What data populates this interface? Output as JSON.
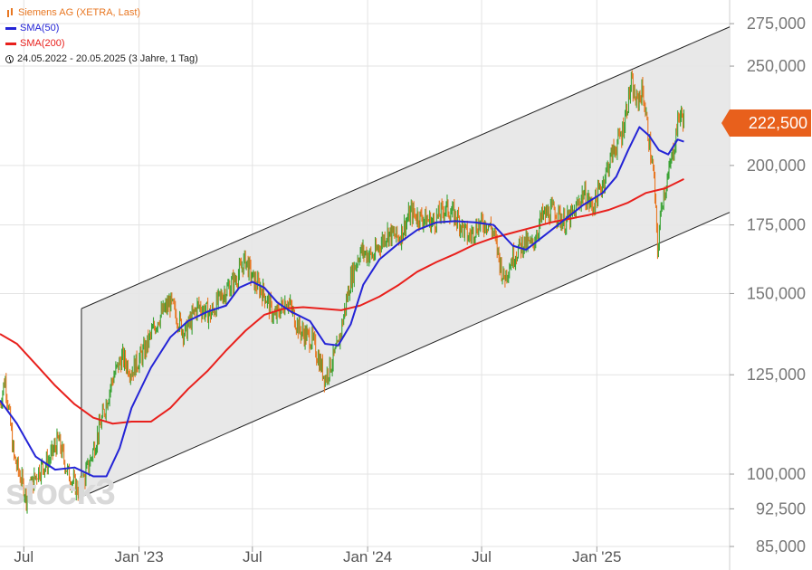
{
  "legend": {
    "instrument": "Siemens AG (XETRA, Last)",
    "sma50": "SMA(50)",
    "sma200": "SMA(200)",
    "period": "24.05.2022 - 20.05.2025  (3 Jahre, 1 Tag)",
    "icons": [
      "candlestick-icon",
      "line-icon",
      "line-icon",
      "clock-icon"
    ]
  },
  "price_badge": "222,500",
  "watermark": "stock3",
  "colors": {
    "up": "#3aa335",
    "down": "#e87722",
    "sma50": "#2424d6",
    "sma200": "#e8201c",
    "channel_fill": "#e6e6e6",
    "badge": "#e8601c"
  },
  "chart_data": {
    "type": "candlestick",
    "title": "Siemens AG (XETRA, Last)",
    "scale": "log",
    "ylim": [
      85000,
      290000
    ],
    "y_ticks": [
      {
        "value": 275000,
        "label": "275,000"
      },
      {
        "value": 250000,
        "label": "250,000"
      },
      {
        "value": 200000,
        "label": "200,000"
      },
      {
        "value": 175000,
        "label": "175,000"
      },
      {
        "value": 150000,
        "label": "150,000"
      },
      {
        "value": 125000,
        "label": "125,000"
      },
      {
        "value": 100000,
        "label": "100,000"
      },
      {
        "value": 92500,
        "label": "92,500"
      },
      {
        "value": 85000,
        "label": "85,000"
      }
    ],
    "x_range": [
      "2022-05-24",
      "2025-08-01"
    ],
    "x_ticks": [
      {
        "date": "2022-07-01",
        "label": "Jul"
      },
      {
        "date": "2023-01-01",
        "label": "Jan '23"
      },
      {
        "date": "2023-07-01",
        "label": "Jul"
      },
      {
        "date": "2024-01-01",
        "label": "Jan '24"
      },
      {
        "date": "2024-07-01",
        "label": "Jul"
      },
      {
        "date": "2025-01-01",
        "label": "Jan '25"
      }
    ],
    "price_path": [
      [
        "2022-05-24",
        117000
      ],
      [
        "2022-06-01",
        124000
      ],
      [
        "2022-06-15",
        104000
      ],
      [
        "2022-07-05",
        95000
      ],
      [
        "2022-07-25",
        101000
      ],
      [
        "2022-08-10",
        103000
      ],
      [
        "2022-08-25",
        108000
      ],
      [
        "2022-09-10",
        100000
      ],
      [
        "2022-09-28",
        96000
      ],
      [
        "2022-10-15",
        103000
      ],
      [
        "2022-11-01",
        112000
      ],
      [
        "2022-11-20",
        124000
      ],
      [
        "2022-12-05",
        130000
      ],
      [
        "2022-12-20",
        126000
      ],
      [
        "2023-01-10",
        132000
      ],
      [
        "2023-02-01",
        142000
      ],
      [
        "2023-02-20",
        147000
      ],
      [
        "2023-03-15",
        137000
      ],
      [
        "2023-04-05",
        146000
      ],
      [
        "2023-04-25",
        143000
      ],
      [
        "2023-05-15",
        150000
      ],
      [
        "2023-06-05",
        155000
      ],
      [
        "2023-06-20",
        162000
      ],
      [
        "2023-07-01",
        155000
      ],
      [
        "2023-07-20",
        150000
      ],
      [
        "2023-08-05",
        142000
      ],
      [
        "2023-08-25",
        148000
      ],
      [
        "2023-09-15",
        138000
      ],
      [
        "2023-10-05",
        135000
      ],
      [
        "2023-10-25",
        124000
      ],
      [
        "2023-11-15",
        133000
      ],
      [
        "2023-12-05",
        155000
      ],
      [
        "2023-12-20",
        165000
      ],
      [
        "2024-01-10",
        163000
      ],
      [
        "2024-02-01",
        172000
      ],
      [
        "2024-02-20",
        170000
      ],
      [
        "2024-03-10",
        180000
      ],
      [
        "2024-03-25",
        178000
      ],
      [
        "2024-04-15",
        176000
      ],
      [
        "2024-05-05",
        182000
      ],
      [
        "2024-05-25",
        177000
      ],
      [
        "2024-06-10",
        170000
      ],
      [
        "2024-06-25",
        175000
      ],
      [
        "2024-07-10",
        176000
      ],
      [
        "2024-07-20",
        172000
      ],
      [
        "2024-08-05",
        155000
      ],
      [
        "2024-08-20",
        163000
      ],
      [
        "2024-09-05",
        168000
      ],
      [
        "2024-09-20",
        167000
      ],
      [
        "2024-10-05",
        178000
      ],
      [
        "2024-10-25",
        181000
      ],
      [
        "2024-11-10",
        176000
      ],
      [
        "2024-11-25",
        179000
      ],
      [
        "2024-12-10",
        188000
      ],
      [
        "2024-12-25",
        182000
      ],
      [
        "2025-01-10",
        192000
      ],
      [
        "2025-01-25",
        205000
      ],
      [
        "2025-02-10",
        215000
      ],
      [
        "2025-02-25",
        240000
      ],
      [
        "2025-03-05",
        230000
      ],
      [
        "2025-03-15",
        237000
      ],
      [
        "2025-03-25",
        212000
      ],
      [
        "2025-04-02",
        195000
      ],
      [
        "2025-04-08",
        165000
      ],
      [
        "2025-04-15",
        185000
      ],
      [
        "2025-04-25",
        195000
      ],
      [
        "2025-05-05",
        210000
      ],
      [
        "2025-05-12",
        224000
      ],
      [
        "2025-05-20",
        222500
      ]
    ],
    "sma50": [
      [
        "2022-05-24",
        118000
      ],
      [
        "2022-06-20",
        112000
      ],
      [
        "2022-07-20",
        104000
      ],
      [
        "2022-08-20",
        101000
      ],
      [
        "2022-09-20",
        101500
      ],
      [
        "2022-10-20",
        99500
      ],
      [
        "2022-11-10",
        99500
      ],
      [
        "2022-12-01",
        106000
      ],
      [
        "2022-12-20",
        116000
      ],
      [
        "2023-01-20",
        127000
      ],
      [
        "2023-02-20",
        136000
      ],
      [
        "2023-03-20",
        141000
      ],
      [
        "2023-04-20",
        144000
      ],
      [
        "2023-05-20",
        146000
      ],
      [
        "2023-06-10",
        152000
      ],
      [
        "2023-07-01",
        154000
      ],
      [
        "2023-07-20",
        152000
      ],
      [
        "2023-08-10",
        147000
      ],
      [
        "2023-09-01",
        144000
      ],
      [
        "2023-10-01",
        141000
      ],
      [
        "2023-10-25",
        134000
      ],
      [
        "2023-11-15",
        133500
      ],
      [
        "2023-12-05",
        140000
      ],
      [
        "2023-12-25",
        153000
      ],
      [
        "2024-01-20",
        162000
      ],
      [
        "2024-02-20",
        168000
      ],
      [
        "2024-03-20",
        173000
      ],
      [
        "2024-04-20",
        176000
      ],
      [
        "2024-05-20",
        176500
      ],
      [
        "2024-06-20",
        176000
      ],
      [
        "2024-07-20",
        175000
      ],
      [
        "2024-08-20",
        167000
      ],
      [
        "2024-09-10",
        165500
      ],
      [
        "2024-10-10",
        171000
      ],
      [
        "2024-11-10",
        177000
      ],
      [
        "2024-12-10",
        183000
      ],
      [
        "2025-01-10",
        188000
      ],
      [
        "2025-02-01",
        195000
      ],
      [
        "2025-02-20",
        207000
      ],
      [
        "2025-03-10",
        218000
      ],
      [
        "2025-03-25",
        214000
      ],
      [
        "2025-04-10",
        207000
      ],
      [
        "2025-04-25",
        205000
      ],
      [
        "2025-05-10",
        212000
      ],
      [
        "2025-05-20",
        211000
      ]
    ],
    "sma200": [
      [
        "2022-05-24",
        137000
      ],
      [
        "2022-06-20",
        134000
      ],
      [
        "2022-07-20",
        128000
      ],
      [
        "2022-08-20",
        122000
      ],
      [
        "2022-09-20",
        117000
      ],
      [
        "2022-10-20",
        113500
      ],
      [
        "2022-11-20",
        112000
      ],
      [
        "2022-12-20",
        112500
      ],
      [
        "2023-01-20",
        112500
      ],
      [
        "2023-02-20",
        116000
      ],
      [
        "2023-03-20",
        121000
      ],
      [
        "2023-04-20",
        126000
      ],
      [
        "2023-05-20",
        132000
      ],
      [
        "2023-06-20",
        138000
      ],
      [
        "2023-07-20",
        143000
      ],
      [
        "2023-08-20",
        145000
      ],
      [
        "2023-09-20",
        145500
      ],
      [
        "2023-10-20",
        145000
      ],
      [
        "2023-11-20",
        144500
      ],
      [
        "2023-12-20",
        146000
      ],
      [
        "2024-01-20",
        149000
      ],
      [
        "2024-02-20",
        153000
      ],
      [
        "2024-03-20",
        157500
      ],
      [
        "2024-04-20",
        161000
      ],
      [
        "2024-05-20",
        164000
      ],
      [
        "2024-06-20",
        167500
      ],
      [
        "2024-07-20",
        170000
      ],
      [
        "2024-08-20",
        172000
      ],
      [
        "2024-09-20",
        174000
      ],
      [
        "2024-10-20",
        176000
      ],
      [
        "2024-11-20",
        177500
      ],
      [
        "2024-12-20",
        179000
      ],
      [
        "2025-01-20",
        181000
      ],
      [
        "2025-02-20",
        184000
      ],
      [
        "2025-03-20",
        188000
      ],
      [
        "2025-04-20",
        190000
      ],
      [
        "2025-05-20",
        194000
      ]
    ],
    "channel": {
      "upper": [
        [
          "2022-10-01",
          145000
        ],
        [
          "2025-08-01",
          273000
        ]
      ],
      "lower": [
        [
          "2022-10-01",
          95000
        ],
        [
          "2025-08-01",
          180000
        ]
      ]
    }
  }
}
